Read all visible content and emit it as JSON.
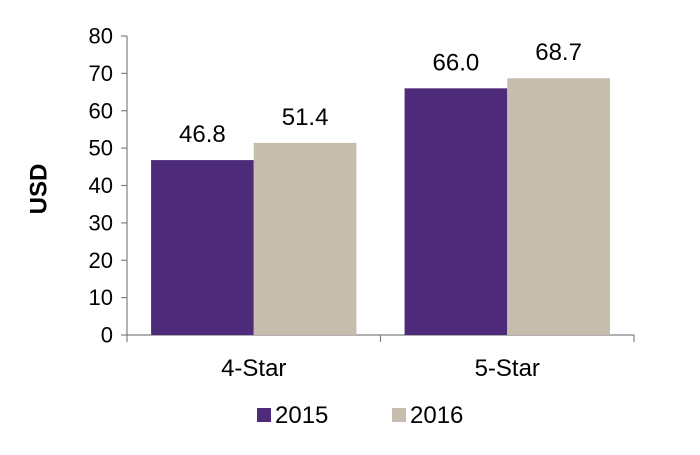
{
  "chart_data": {
    "type": "bar",
    "categories": [
      "4-Star",
      "5-Star"
    ],
    "series": [
      {
        "name": "2015",
        "values": [
          46.8,
          66.0
        ],
        "labels": [
          "46.8",
          "66.0"
        ],
        "color": "#4E2A7A"
      },
      {
        "name": "2016",
        "values": [
          51.4,
          68.7
        ],
        "labels": [
          "51.4",
          "68.7"
        ],
        "color": "#C7BDAE"
      }
    ],
    "xlabel": "",
    "ylabel": "USD",
    "ylim": [
      0,
      80
    ],
    "yticks": [
      "0",
      "10",
      "20",
      "30",
      "40",
      "50",
      "60",
      "70",
      "80"
    ],
    "grid": false,
    "legend_position": "bottom"
  }
}
